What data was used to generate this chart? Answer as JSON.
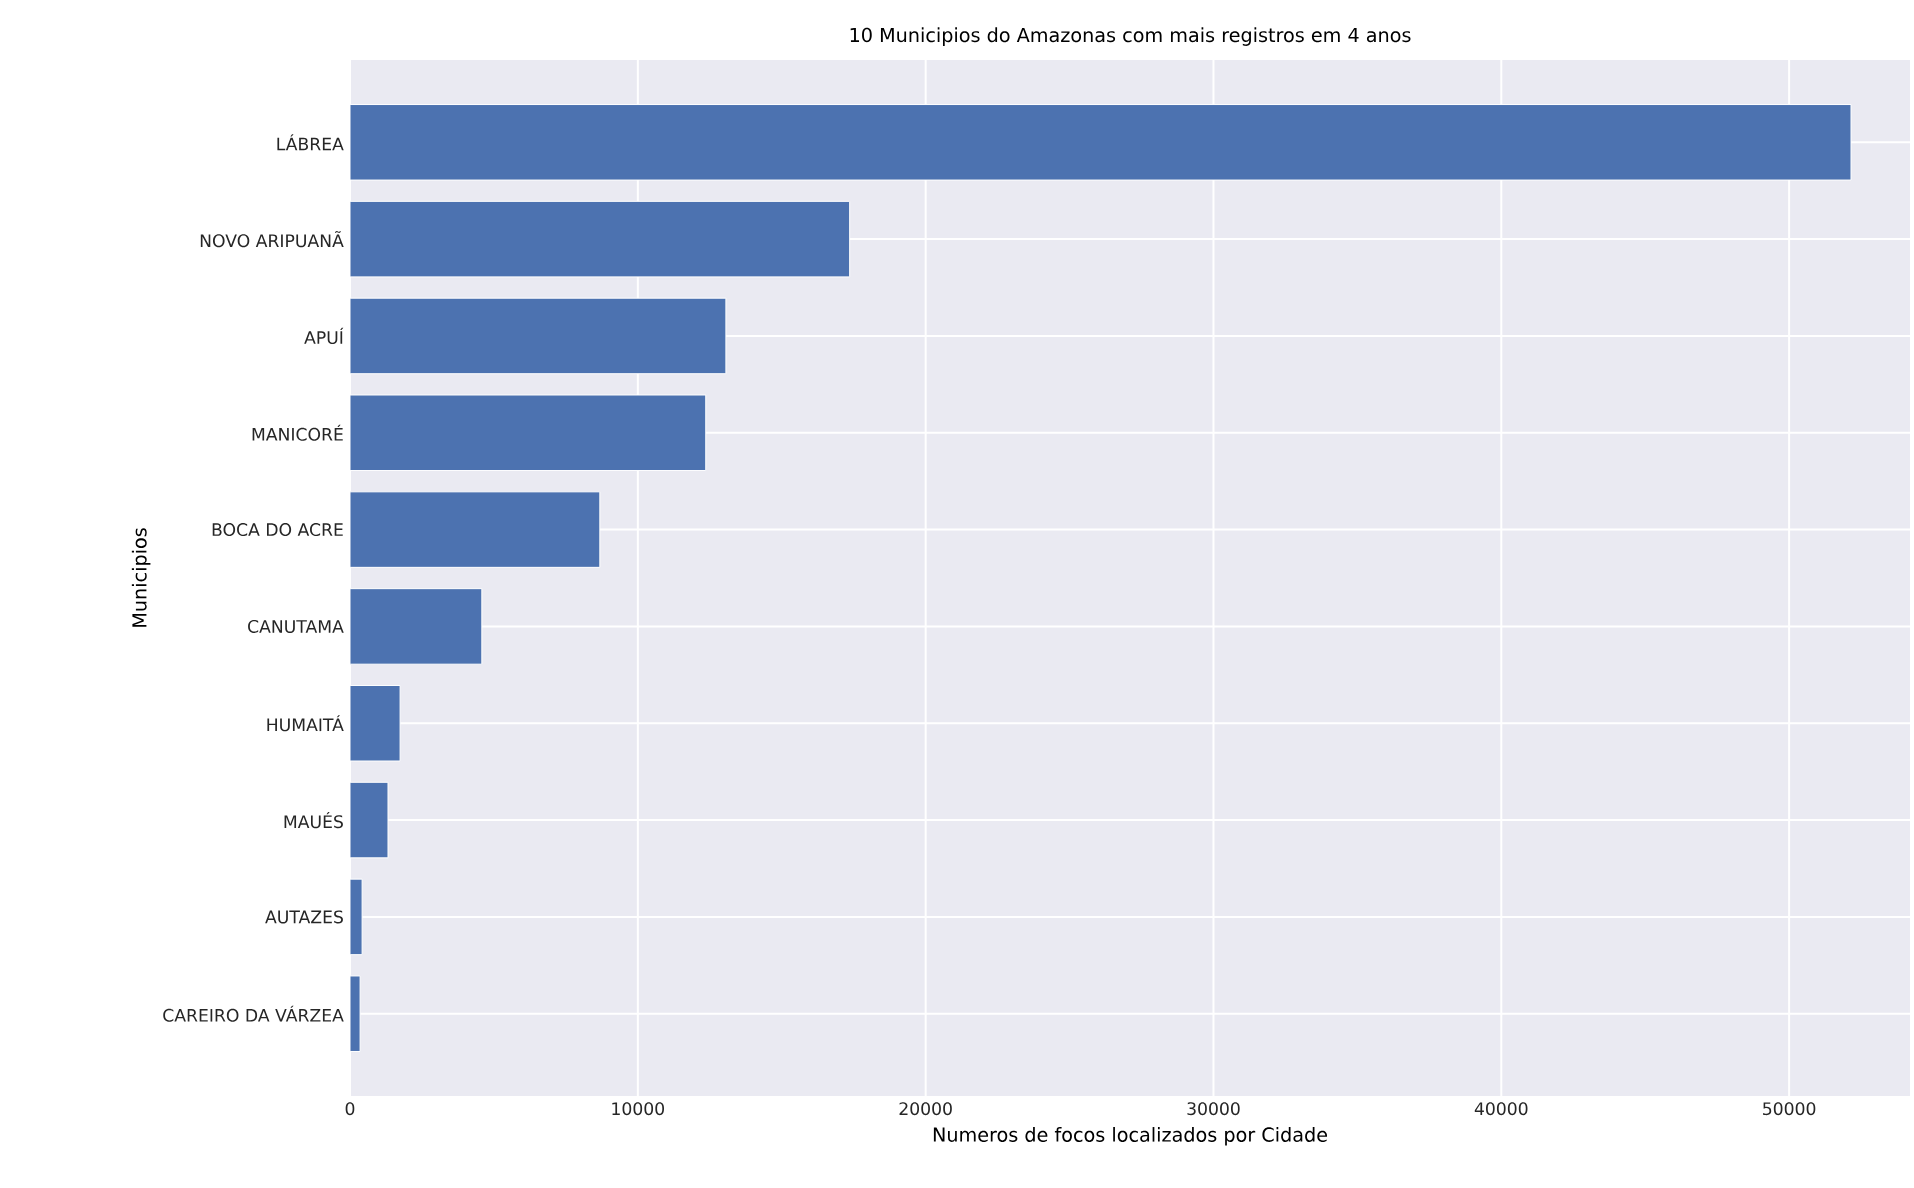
{
  "chart_data": {
    "type": "bar",
    "orientation": "horizontal",
    "title": "10 Municipios do Amazonas com mais registros em 4 anos",
    "xlabel": "Numeros de focos localizados por Cidade",
    "ylabel": "Municipios",
    "categories": [
      "LÁBREA",
      "NOVO ARIPUANÃ",
      "APUÍ",
      "MANICORÉ",
      "BOCA DO ACRE",
      "CANUTAMA",
      "HUMAITÁ",
      "MAUÉS",
      "AUTAZES",
      "CAREIRO DA VÁRZEA"
    ],
    "values": [
      52150,
      17360,
      13060,
      12360,
      8680,
      4580,
      1740,
      1320,
      420,
      350
    ],
    "color": "#4c72b0",
    "xlim": [
      0,
      54200
    ],
    "xticks": [
      0,
      10000,
      20000,
      30000,
      40000,
      50000
    ],
    "grid": true
  }
}
